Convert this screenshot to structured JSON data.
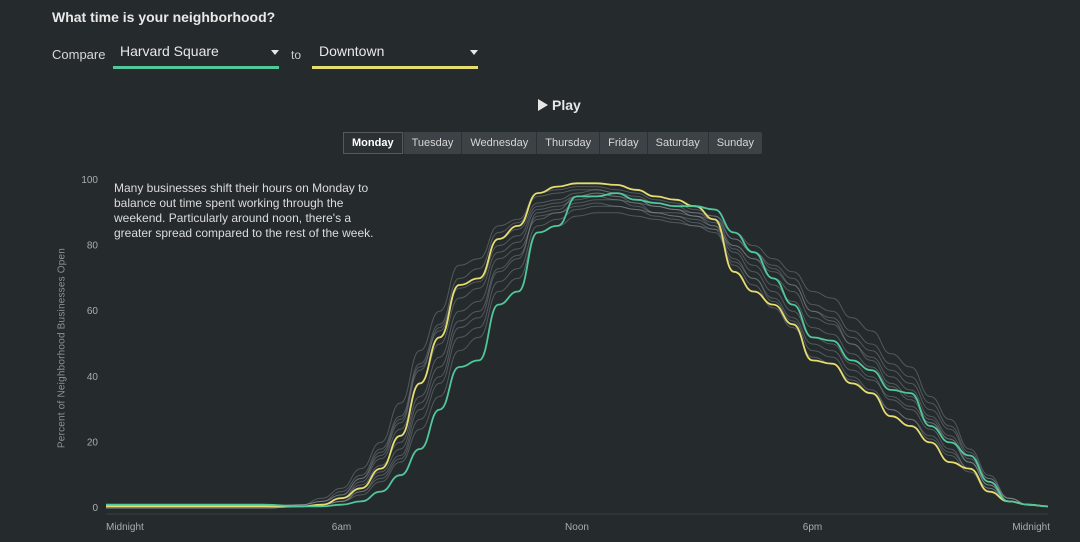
{
  "header": {
    "title": "What time is your neighborhood?"
  },
  "compare": {
    "label": "Compare",
    "to_label": "to",
    "a": {
      "value": "Harvard Square",
      "color": "#52c79a"
    },
    "b": {
      "value": "Downtown",
      "color": "#e6dd70"
    }
  },
  "play": {
    "label": "Play"
  },
  "days": [
    "Monday",
    "Tuesday",
    "Wednesday",
    "Thursday",
    "Friday",
    "Saturday",
    "Sunday"
  ],
  "active_day": "Monday",
  "annotation": "Many businesses shift their hours on Monday to balance out time spent working through the weekend. Particularly around noon, there's a greater spread compared to the rest of the week.",
  "chart_data": {
    "type": "line",
    "ylabel": "Percent of Neighborhood Businesses Open",
    "xlabel": "",
    "ylim": [
      0,
      100
    ],
    "yticks": [
      0,
      20,
      40,
      60,
      80,
      100
    ],
    "xlim": [
      0,
      24
    ],
    "xticks": [
      {
        "x": 0,
        "label": "Midnight"
      },
      {
        "x": 6,
        "label": "6am"
      },
      {
        "x": 12,
        "label": "Noon"
      },
      {
        "x": 18,
        "label": "6pm"
      },
      {
        "x": 24,
        "label": "Midnight"
      }
    ],
    "grid": false,
    "x": [
      0,
      1,
      2,
      3,
      4,
      5,
      5.5,
      6,
      6.5,
      7,
      7.5,
      8,
      8.5,
      9,
      9.5,
      10,
      10.5,
      11,
      11.5,
      12,
      12.5,
      13,
      13.5,
      14,
      14.5,
      15,
      15.5,
      16,
      16.5,
      17,
      17.5,
      18,
      18.5,
      19,
      19.5,
      20,
      20.5,
      21,
      21.5,
      22,
      22.5,
      23,
      23.5,
      24
    ],
    "highlight": [
      {
        "name": "Downtown",
        "color": "#e6dd70",
        "values": [
          0.5,
          0.5,
          0.5,
          0.5,
          0.5,
          0.5,
          1,
          3,
          6,
          12,
          22,
          38,
          52,
          68,
          70,
          82,
          86,
          96,
          98,
          99,
          99,
          98.5,
          97,
          95,
          94,
          92,
          88,
          72,
          66,
          62,
          56,
          45,
          44,
          38,
          35,
          28,
          25,
          20,
          14,
          12,
          5,
          2,
          1,
          0.5
        ]
      },
      {
        "name": "Harvard Square",
        "color": "#52c79a",
        "values": [
          1,
          1,
          1,
          1,
          1,
          0.5,
          0.5,
          1,
          2,
          5,
          10,
          18,
          30,
          43,
          45,
          62,
          66,
          84,
          86,
          95,
          95,
          96,
          94,
          93,
          92,
          92,
          91,
          84,
          78,
          70,
          62,
          52,
          51,
          45,
          42,
          36,
          35,
          25,
          20,
          16,
          8,
          2,
          1,
          0.5
        ]
      }
    ],
    "background_series": [
      {
        "color": "#8a9296",
        "values": [
          0,
          0,
          0,
          0,
          0,
          0.5,
          1,
          2,
          5,
          10,
          16,
          30,
          40,
          55,
          58,
          72,
          76,
          90,
          91,
          95,
          96,
          95,
          93,
          90,
          89,
          88,
          86,
          78,
          72,
          66,
          60,
          52,
          50,
          44,
          40,
          33,
          30,
          24,
          18,
          12,
          6,
          2,
          1,
          0.5
        ]
      },
      {
        "color": "#8a9296",
        "values": [
          0.5,
          0.5,
          0.5,
          0.5,
          0.5,
          1,
          2,
          4,
          9,
          16,
          26,
          42,
          55,
          68,
          70,
          82,
          85,
          93,
          94,
          96,
          97,
          96,
          95,
          93,
          92,
          90,
          88,
          80,
          76,
          70,
          66,
          58,
          56,
          50,
          46,
          40,
          36,
          28,
          22,
          15,
          8,
          3,
          1,
          0.5
        ]
      },
      {
        "color": "#8a9296",
        "values": [
          0,
          0,
          0,
          0,
          0,
          0.5,
          1,
          3,
          7,
          13,
          20,
          34,
          46,
          60,
          63,
          76,
          79,
          88,
          90,
          92,
          93,
          92,
          91,
          89,
          88,
          86,
          84,
          75,
          70,
          64,
          58,
          50,
          48,
          42,
          39,
          34,
          31,
          26,
          21,
          14,
          7,
          2,
          1,
          0.5
        ]
      },
      {
        "color": "#8a9296",
        "values": [
          0.5,
          0.5,
          0.5,
          0.5,
          0.5,
          1,
          2,
          5,
          10,
          18,
          28,
          44,
          56,
          70,
          73,
          84,
          87,
          95,
          96,
          97,
          97,
          96,
          94,
          92,
          91,
          89,
          86,
          76,
          70,
          63,
          57,
          48,
          46,
          40,
          36,
          30,
          27,
          22,
          17,
          12,
          6,
          2,
          1,
          0.5
        ]
      },
      {
        "color": "#8a9296",
        "values": [
          0,
          0,
          0,
          0,
          0,
          0.5,
          1,
          2,
          4,
          8,
          14,
          24,
          34,
          48,
          52,
          66,
          70,
          84,
          86,
          89,
          90,
          90,
          89,
          88,
          87,
          86,
          85,
          80,
          76,
          72,
          68,
          60,
          58,
          52,
          48,
          42,
          38,
          30,
          24,
          16,
          9,
          3,
          1,
          0.5
        ]
      },
      {
        "color": "#8a9296",
        "values": [
          0.5,
          0.5,
          0.5,
          0.5,
          0.5,
          1,
          3,
          6,
          12,
          20,
          32,
          48,
          60,
          74,
          76,
          86,
          88,
          96,
          97,
          98,
          98,
          97,
          96,
          94,
          93,
          91,
          89,
          82,
          78,
          73,
          68,
          60,
          57,
          50,
          45,
          38,
          34,
          27,
          21,
          14,
          7,
          2,
          1,
          0.5
        ]
      },
      {
        "color": "#8a9296",
        "values": [
          0,
          0,
          0,
          0,
          0,
          0.5,
          1,
          2,
          6,
          11,
          18,
          32,
          43,
          57,
          60,
          73,
          77,
          89,
          90,
          93,
          94,
          94,
          93,
          92,
          91,
          90,
          89,
          84,
          80,
          76,
          72,
          66,
          64,
          58,
          54,
          47,
          43,
          34,
          27,
          18,
          10,
          3,
          1,
          0.5
        ]
      },
      {
        "color": "#8a9296",
        "values": [
          0.5,
          0.5,
          0.5,
          0.5,
          0.5,
          0.5,
          1,
          3,
          8,
          15,
          24,
          38,
          50,
          64,
          67,
          78,
          81,
          91,
          92,
          94,
          95,
          94,
          92,
          90,
          89,
          87,
          85,
          74,
          68,
          61,
          55,
          46,
          44,
          39,
          35,
          30,
          27,
          21,
          16,
          11,
          5,
          2,
          1,
          0.5
        ]
      },
      {
        "color": "#8a9296",
        "values": [
          0,
          0,
          0,
          0,
          0,
          0.5,
          1,
          2,
          5,
          9,
          15,
          27,
          38,
          52,
          55,
          69,
          73,
          86,
          88,
          91,
          92,
          92,
          91,
          90,
          90,
          89,
          88,
          82,
          78,
          74,
          70,
          62,
          60,
          54,
          50,
          44,
          40,
          32,
          25,
          17,
          9,
          3,
          1,
          0.5
        ]
      },
      {
        "color": "#8a9296",
        "values": [
          0.5,
          0.5,
          0.5,
          0.5,
          0.5,
          1,
          2,
          4,
          9,
          17,
          27,
          43,
          54,
          67,
          69,
          80,
          83,
          92,
          93,
          95,
          96,
          95,
          94,
          92,
          91,
          89,
          87,
          79,
          74,
          68,
          63,
          55,
          53,
          47,
          43,
          37,
          33,
          26,
          20,
          14,
          7,
          2,
          1,
          0.5
        ]
      }
    ]
  }
}
